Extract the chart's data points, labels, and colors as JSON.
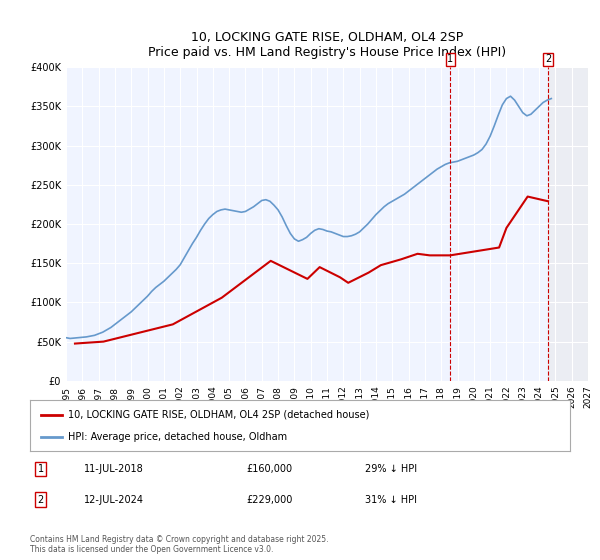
{
  "title": "10, LOCKING GATE RISE, OLDHAM, OL4 2SP",
  "subtitle": "Price paid vs. HM Land Registry's House Price Index (HPI)",
  "xlabel": "",
  "ylabel": "",
  "ylim": [
    0,
    400000
  ],
  "xlim": [
    1995,
    2027
  ],
  "yticks": [
    0,
    50000,
    100000,
    150000,
    200000,
    250000,
    300000,
    350000,
    400000
  ],
  "ytick_labels": [
    "£0",
    "£50K",
    "£100K",
    "£150K",
    "£200K",
    "£250K",
    "£300K",
    "£350K",
    "£400K"
  ],
  "xticks": [
    1995,
    1996,
    1997,
    1998,
    1999,
    2000,
    2001,
    2002,
    2003,
    2004,
    2005,
    2006,
    2007,
    2008,
    2009,
    2010,
    2011,
    2012,
    2013,
    2014,
    2015,
    2016,
    2017,
    2018,
    2019,
    2020,
    2021,
    2022,
    2023,
    2024,
    2025,
    2026,
    2027
  ],
  "hpi_x": [
    1995.0,
    1995.25,
    1995.5,
    1995.75,
    1996.0,
    1996.25,
    1996.5,
    1996.75,
    1997.0,
    1997.25,
    1997.5,
    1997.75,
    1998.0,
    1998.25,
    1998.5,
    1998.75,
    1999.0,
    1999.25,
    1999.5,
    1999.75,
    2000.0,
    2000.25,
    2000.5,
    2000.75,
    2001.0,
    2001.25,
    2001.5,
    2001.75,
    2002.0,
    2002.25,
    2002.5,
    2002.75,
    2003.0,
    2003.25,
    2003.5,
    2003.75,
    2004.0,
    2004.25,
    2004.5,
    2004.75,
    2005.0,
    2005.25,
    2005.5,
    2005.75,
    2006.0,
    2006.25,
    2006.5,
    2006.75,
    2007.0,
    2007.25,
    2007.5,
    2007.75,
    2008.0,
    2008.25,
    2008.5,
    2008.75,
    2009.0,
    2009.25,
    2009.5,
    2009.75,
    2010.0,
    2010.25,
    2010.5,
    2010.75,
    2011.0,
    2011.25,
    2011.5,
    2011.75,
    2012.0,
    2012.25,
    2012.5,
    2012.75,
    2013.0,
    2013.25,
    2013.5,
    2013.75,
    2014.0,
    2014.25,
    2014.5,
    2014.75,
    2015.0,
    2015.25,
    2015.5,
    2015.75,
    2016.0,
    2016.25,
    2016.5,
    2016.75,
    2017.0,
    2017.25,
    2017.5,
    2017.75,
    2018.0,
    2018.25,
    2018.5,
    2018.75,
    2019.0,
    2019.25,
    2019.5,
    2019.75,
    2020.0,
    2020.25,
    2020.5,
    2020.75,
    2021.0,
    2021.25,
    2021.5,
    2021.75,
    2022.0,
    2022.25,
    2022.5,
    2022.75,
    2023.0,
    2023.25,
    2023.5,
    2023.75,
    2024.0,
    2024.25,
    2024.5,
    2024.75
  ],
  "hpi_y": [
    55000,
    54000,
    54500,
    55000,
    55500,
    56000,
    57000,
    58000,
    60000,
    62000,
    65000,
    68000,
    72000,
    76000,
    80000,
    84000,
    88000,
    93000,
    98000,
    103000,
    108000,
    114000,
    119000,
    123000,
    127000,
    132000,
    137000,
    142000,
    148000,
    157000,
    166000,
    175000,
    183000,
    192000,
    200000,
    207000,
    212000,
    216000,
    218000,
    219000,
    218000,
    217000,
    216000,
    215000,
    216000,
    219000,
    222000,
    226000,
    230000,
    231000,
    229000,
    224000,
    218000,
    209000,
    198000,
    188000,
    181000,
    178000,
    180000,
    183000,
    188000,
    192000,
    194000,
    193000,
    191000,
    190000,
    188000,
    186000,
    184000,
    184000,
    185000,
    187000,
    190000,
    195000,
    200000,
    206000,
    212000,
    217000,
    222000,
    226000,
    229000,
    232000,
    235000,
    238000,
    242000,
    246000,
    250000,
    254000,
    258000,
    262000,
    266000,
    270000,
    273000,
    276000,
    278000,
    279000,
    280000,
    282000,
    284000,
    286000,
    288000,
    291000,
    295000,
    302000,
    312000,
    325000,
    339000,
    352000,
    360000,
    363000,
    358000,
    350000,
    342000,
    338000,
    340000,
    345000,
    350000,
    355000,
    358000,
    360000
  ],
  "price_x": [
    1995.55,
    1997.3,
    2001.55,
    2004.55,
    2007.55,
    2009.8,
    2010.55,
    2011.8,
    2012.3,
    2013.55,
    2014.3,
    2015.55,
    2016.55,
    2017.3,
    2018.55,
    2021.55,
    2022.0,
    2023.3,
    2024.55
  ],
  "price_y": [
    47500,
    50000,
    72000,
    106000,
    153000,
    130000,
    145000,
    132000,
    125000,
    138000,
    147500,
    155000,
    162000,
    160000,
    160000,
    170000,
    195000,
    235000,
    229000
  ],
  "price_color": "#cc0000",
  "hpi_color": "#6699cc",
  "vline1_x": 2018.55,
  "vline2_x": 2024.55,
  "vline_color": "#cc0000",
  "marker1_label": "1",
  "marker2_label": "2",
  "legend_label1": "10, LOCKING GATE RISE, OLDHAM, OL4 2SP (detached house)",
  "legend_label2": "HPI: Average price, detached house, Oldham",
  "table": [
    {
      "num": "1",
      "date": "11-JUL-2018",
      "price": "£160,000",
      "hpi": "29% ↓ HPI"
    },
    {
      "num": "2",
      "date": "12-JUL-2024",
      "price": "£229,000",
      "hpi": "31% ↓ HPI"
    }
  ],
  "footnote": "Contains HM Land Registry data © Crown copyright and database right 2025.\nThis data is licensed under the Open Government Licence v3.0.",
  "bg_color": "#ffffff",
  "plot_bg_color": "#f0f4ff",
  "grid_color": "#ffffff"
}
